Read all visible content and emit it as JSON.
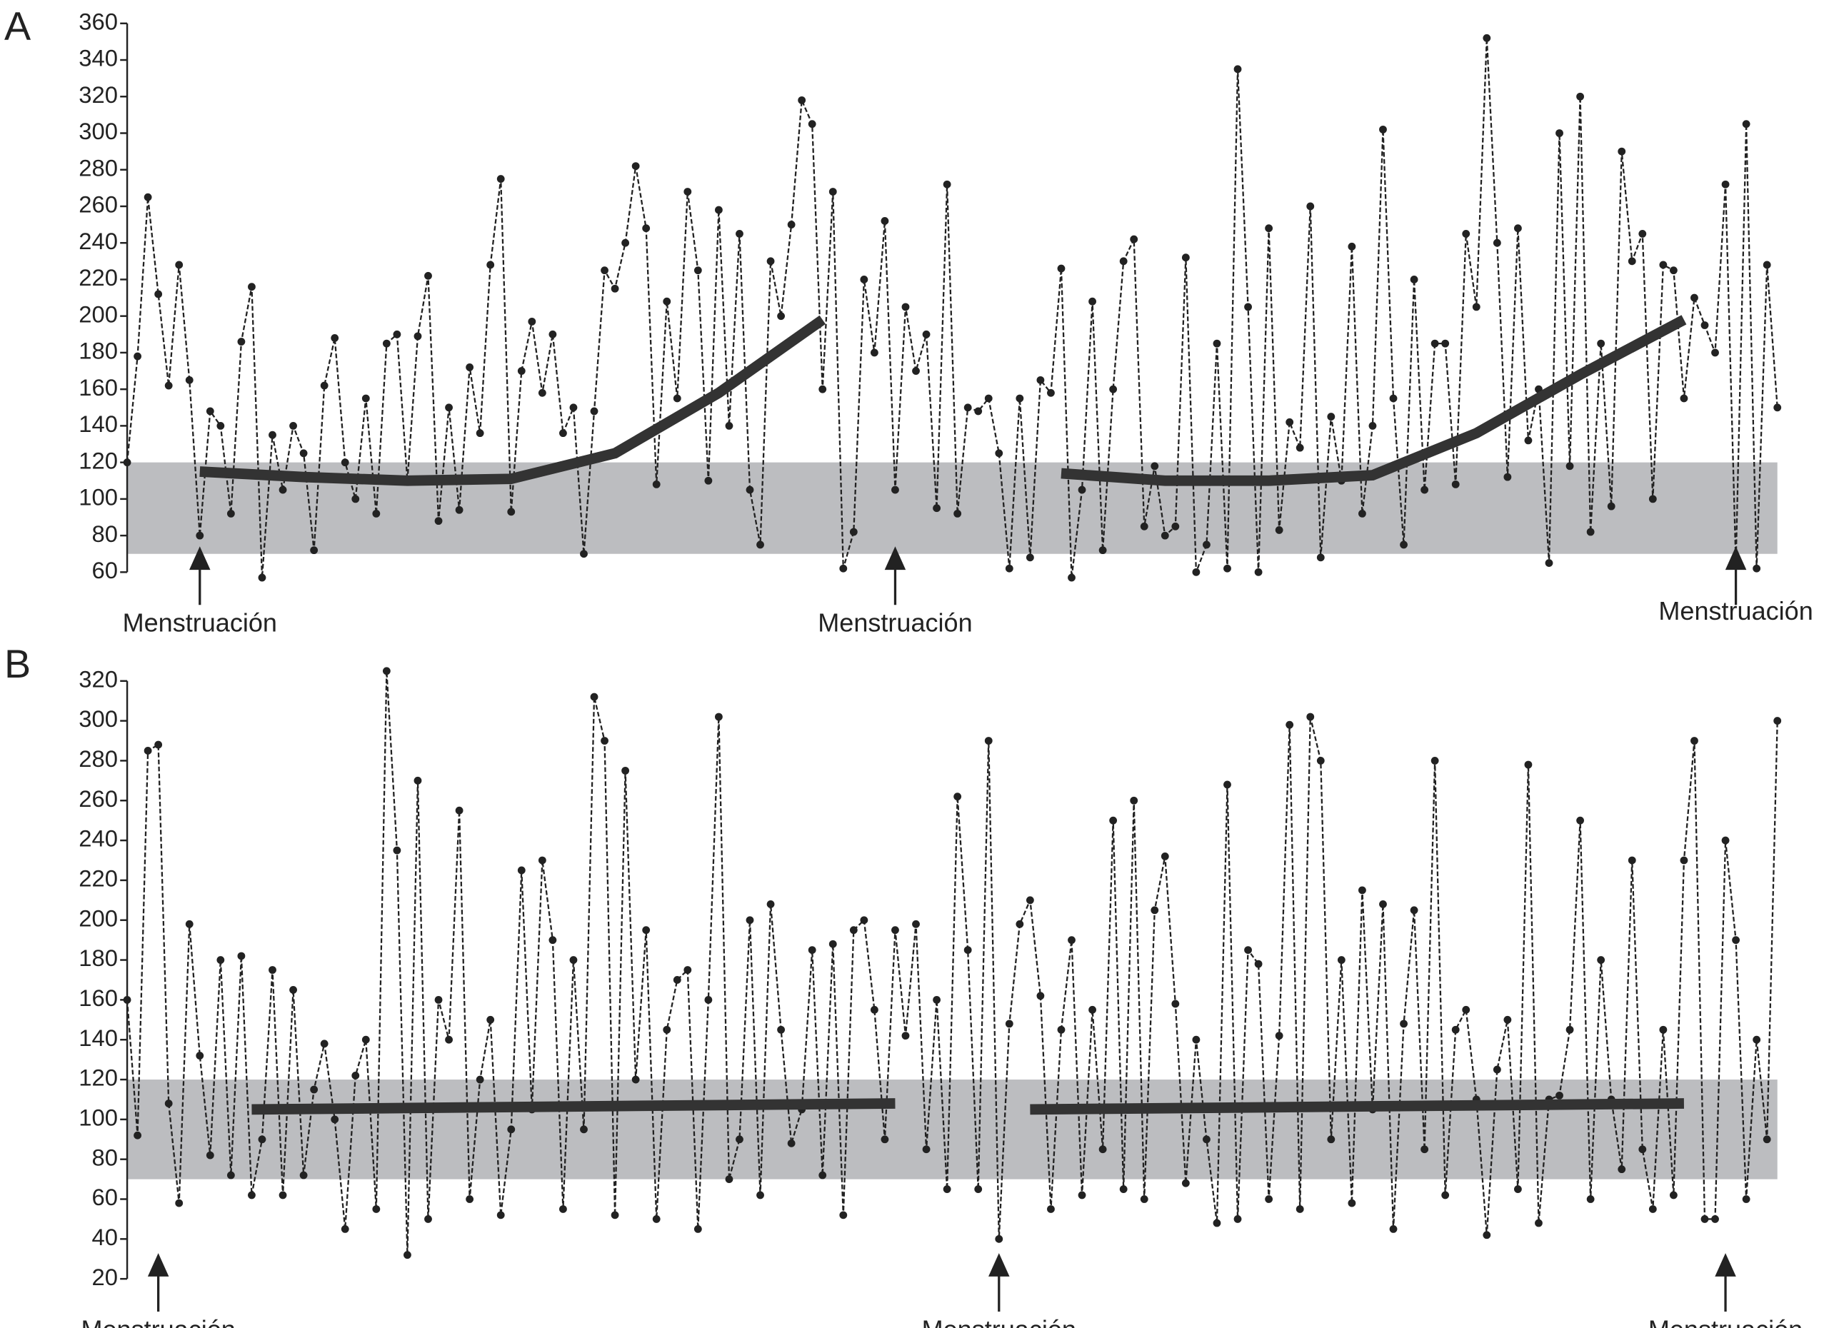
{
  "chart_data": [
    {
      "type": "line",
      "panel": "A",
      "ylim": [
        60,
        360
      ],
      "yticks": [
        60,
        80,
        100,
        120,
        140,
        160,
        180,
        200,
        220,
        240,
        260,
        280,
        300,
        320,
        340,
        360
      ],
      "normal_range": [
        70,
        120
      ],
      "range_color": "#bcbdc0",
      "series": [
        {
          "color": "#222222",
          "style": "dashed-dots",
          "values": [
            120,
            178,
            265,
            212,
            162,
            228,
            165,
            80,
            148,
            140,
            92,
            186,
            216,
            57,
            135,
            105,
            140,
            125,
            72,
            162,
            188,
            120,
            100,
            155,
            92,
            185,
            190,
            110,
            189,
            222,
            88,
            150,
            94,
            172,
            136,
            228,
            275,
            93,
            170,
            197,
            158,
            190,
            136,
            150,
            70,
            148,
            225,
            215,
            240,
            282,
            248,
            108,
            208,
            155,
            268,
            225,
            110,
            258,
            140,
            245,
            105,
            75,
            230,
            200,
            250,
            318,
            305,
            160,
            268,
            62,
            82,
            220,
            180,
            252,
            105,
            205,
            170,
            190,
            95,
            272,
            92,
            150,
            148,
            155,
            125,
            62,
            155,
            68,
            165,
            158,
            226,
            57,
            105,
            208,
            72,
            160,
            230,
            242,
            85,
            118,
            80,
            85,
            232,
            60,
            75,
            185,
            62,
            335,
            205,
            60,
            248,
            83,
            142,
            128,
            260,
            68,
            145,
            110,
            238,
            92,
            140,
            302,
            155,
            75,
            220,
            105,
            185,
            185,
            108,
            245,
            205,
            352,
            240,
            112,
            248,
            132,
            160,
            65,
            300,
            118,
            320,
            82,
            185,
            96,
            290,
            230,
            245,
            100,
            228,
            225,
            155,
            210,
            195,
            180,
            272,
            65,
            305,
            62,
            228,
            150
          ]
        },
        {
          "color": "#333333",
          "style": "trend",
          "x": [
            7,
            17,
            27,
            37,
            47,
            57,
            67,
            78,
            90,
            100,
            110,
            120,
            130,
            140,
            150
          ],
          "values": [
            115,
            112,
            110,
            111,
            125,
            158,
            198,
            null,
            114,
            110,
            110,
            113,
            136,
            168,
            198
          ]
        }
      ],
      "annotations": [
        {
          "text": "Menstruación",
          "x": 7
        },
        {
          "text": "Menstruación",
          "x": 74
        },
        {
          "text": "Menstruación",
          "x": 155
        }
      ]
    },
    {
      "type": "line",
      "panel": "B",
      "ylim": [
        20,
        320
      ],
      "yticks": [
        20,
        40,
        60,
        80,
        100,
        120,
        140,
        160,
        180,
        200,
        220,
        240,
        260,
        280,
        300,
        320
      ],
      "normal_range": [
        70,
        120
      ],
      "range_color": "#bcbdc0",
      "series": [
        {
          "color": "#222222",
          "style": "dashed-dots",
          "values": [
            160,
            92,
            285,
            288,
            108,
            58,
            198,
            132,
            82,
            180,
            72,
            182,
            62,
            90,
            175,
            62,
            165,
            72,
            115,
            138,
            100,
            45,
            122,
            140,
            55,
            325,
            235,
            32,
            270,
            50,
            160,
            140,
            255,
            60,
            120,
            150,
            52,
            95,
            225,
            105,
            230,
            190,
            55,
            180,
            95,
            312,
            290,
            52,
            275,
            120,
            195,
            50,
            145,
            170,
            175,
            45,
            160,
            302,
            70,
            90,
            200,
            62,
            208,
            145,
            88,
            105,
            185,
            72,
            188,
            52,
            195,
            200,
            155,
            90,
            195,
            142,
            198,
            85,
            160,
            65,
            262,
            185,
            65,
            290,
            40,
            148,
            198,
            210,
            162,
            55,
            145,
            190,
            62,
            155,
            85,
            250,
            65,
            260,
            60,
            205,
            232,
            158,
            68,
            140,
            90,
            48,
            268,
            50,
            185,
            178,
            60,
            142,
            298,
            55,
            302,
            280,
            90,
            180,
            58,
            215,
            105,
            208,
            45,
            148,
            205,
            85,
            280,
            62,
            145,
            155,
            110,
            42,
            125,
            150,
            65,
            278,
            48,
            110,
            112,
            145,
            250,
            60,
            180,
            110,
            75,
            230,
            85,
            55,
            145,
            62,
            230,
            290,
            50,
            50,
            240,
            190,
            60,
            140,
            90,
            300
          ]
        },
        {
          "color": "#333333",
          "style": "trend",
          "x": [
            12,
            74,
            80,
            87,
            150
          ],
          "values": [
            105,
            108,
            null,
            105,
            108
          ]
        }
      ],
      "annotations": [
        {
          "text": "Menstruación",
          "x": 3
        },
        {
          "text": "Menstruación",
          "x": 84
        },
        {
          "text": "Menstruación",
          "x": 154
        }
      ]
    }
  ]
}
